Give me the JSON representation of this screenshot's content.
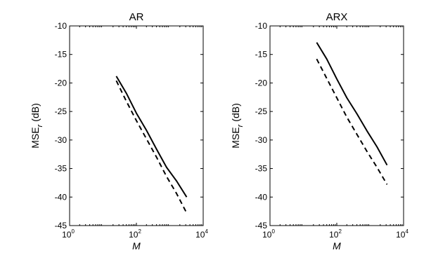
{
  "chart_data": [
    {
      "type": "line",
      "title": "AR",
      "xlabel": "M",
      "ylabel": "MSE",
      "ylabel_subscript": "r",
      "ylabel_unit": "(dB)",
      "xscale": "log",
      "xlim": [
        1,
        10000
      ],
      "ylim": [
        -45,
        -10
      ],
      "xticks": [
        1,
        100,
        10000
      ],
      "xtick_labels": [
        {
          "base": "10",
          "exp": "0"
        },
        {
          "base": "10",
          "exp": "2"
        },
        {
          "base": "10",
          "exp": "4"
        }
      ],
      "yticks": [
        -45,
        -40,
        -35,
        -30,
        -25,
        -20,
        -15,
        -10
      ],
      "grid": false,
      "series": [
        {
          "style": "solid",
          "x": [
            25,
            50,
            100,
            200,
            400,
            800,
            1600,
            3200
          ],
          "y": [
            -18.8,
            -21.8,
            -25.3,
            -28.3,
            -31.6,
            -34.8,
            -37.2,
            -40.0
          ]
        },
        {
          "style": "dashed",
          "x": [
            25,
            50,
            100,
            200,
            400,
            800,
            1600,
            3200
          ],
          "y": [
            -19.6,
            -23.2,
            -26.6,
            -29.8,
            -33.0,
            -36.4,
            -39.4,
            -42.8
          ]
        }
      ]
    },
    {
      "type": "line",
      "title": "ARX",
      "xlabel": "M",
      "ylabel": "MSE",
      "ylabel_subscript": "r",
      "ylabel_unit": "(dB)",
      "xscale": "log",
      "xlim": [
        1,
        10000
      ],
      "ylim": [
        -45,
        -10
      ],
      "xticks": [
        1,
        100,
        10000
      ],
      "xtick_labels": [
        {
          "base": "10",
          "exp": "0"
        },
        {
          "base": "10",
          "exp": "2"
        },
        {
          "base": "10",
          "exp": "4"
        }
      ],
      "yticks": [
        -45,
        -40,
        -35,
        -30,
        -25,
        -20,
        -15,
        -10
      ],
      "grid": false,
      "series": [
        {
          "style": "solid",
          "x": [
            25,
            50,
            100,
            200,
            400,
            800,
            1600,
            3200
          ],
          "y": [
            -12.9,
            -15.8,
            -19.3,
            -22.6,
            -25.4,
            -28.4,
            -31.2,
            -34.4
          ]
        },
        {
          "style": "dashed",
          "x": [
            25,
            50,
            100,
            200,
            400,
            800,
            1600,
            3200
          ],
          "y": [
            -15.8,
            -19.2,
            -22.6,
            -26.0,
            -29.0,
            -32.0,
            -34.8,
            -37.8
          ]
        }
      ]
    }
  ]
}
